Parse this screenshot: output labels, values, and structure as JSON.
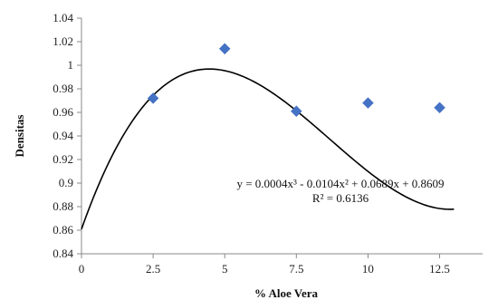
{
  "chart_data": {
    "type": "scatter",
    "xlabel": "% Aloe Vera",
    "ylabel": "Densitas",
    "xlim": [
      0,
      14
    ],
    "ylim": [
      0.84,
      1.04
    ],
    "x_ticks": [
      "0",
      "2.5",
      "5",
      "7.5",
      "10",
      "12.5"
    ],
    "y_ticks": [
      "0.84",
      "0.86",
      "0.88",
      "0.9",
      "0.92",
      "0.94",
      "0.96",
      "0.98",
      "1",
      "1.02",
      "1.04"
    ],
    "grid": false,
    "series": [
      {
        "points": [
          {
            "x": 2.5,
            "y": 0.972
          },
          {
            "x": 5,
            "y": 1.014
          },
          {
            "x": 7.5,
            "y": 0.961
          },
          {
            "x": 10,
            "y": 0.968
          },
          {
            "x": 12.5,
            "y": 0.964
          }
        ],
        "marker_color": "#4472C4"
      }
    ],
    "trendline": {
      "type": "polynomial",
      "coefficients": [
        0.0004,
        -0.0104,
        0.0689,
        0.8609
      ],
      "x_range": [
        0,
        13
      ],
      "color": "#000000",
      "equation_label": "y = 0.0004x³ - 0.0104x² + 0.0689x + 0.8609",
      "r2_label": "R² = 0.6136"
    }
  }
}
